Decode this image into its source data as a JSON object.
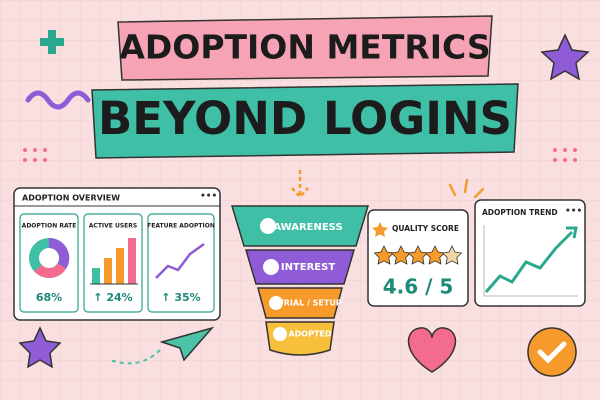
{
  "header": {
    "line1": "ADOPTION METRICS",
    "line2": "BEYOND LOGINS"
  },
  "overview": {
    "title": "ADOPTION OVERVIEW",
    "cards": [
      {
        "label": "ADOPTION RATE",
        "value": "68%"
      },
      {
        "label": "ACTIVE USERS",
        "value": "↑ 24%"
      },
      {
        "label": "FEATURE ADOPTION",
        "value": "↑ 35%"
      }
    ]
  },
  "funnel": {
    "stages": [
      "AWARENESS",
      "INTEREST",
      "TRIAL / SETUP",
      "ADOPTED"
    ]
  },
  "quality": {
    "title": "QUALITY SCORE",
    "value": "4.6 / 5"
  },
  "trend": {
    "title": "ADOPTION TREND"
  }
}
